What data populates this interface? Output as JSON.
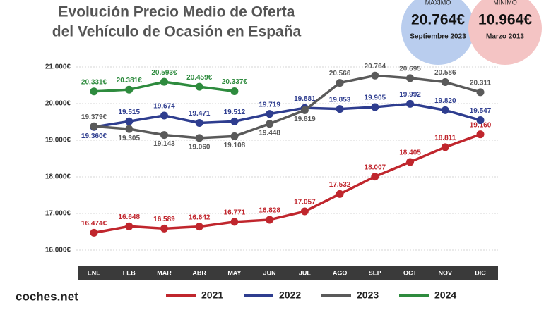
{
  "chart_data": {
    "type": "line",
    "title_lines": [
      "Evolución Precio Medio de Oferta",
      "del Vehículo de Ocasión en España"
    ],
    "badges": [
      {
        "heading": "MÁXIMO",
        "value": "20.764€",
        "sub": "Septiembre 2023",
        "color": "#b9cdee"
      },
      {
        "heading": "MÍNIMO",
        "value": "10.964€",
        "sub": "Marzo 2013",
        "color": "#f4c4c4"
      }
    ],
    "brand": "coches.net",
    "categories": [
      "ENE",
      "FEB",
      "MAR",
      "ABR",
      "MAY",
      "JUN",
      "JUL",
      "AGO",
      "SEP",
      "OCT",
      "NOV",
      "DIC"
    ],
    "series": [
      {
        "name": "2021",
        "color": "#c0262d",
        "values": [
          16474,
          16648,
          16589,
          16642,
          16771,
          16828,
          17057,
          17532,
          18007,
          18405,
          18811,
          19160
        ],
        "value_labels": [
          "16.474€",
          "16.648",
          "16.589",
          "16.642",
          "16.771",
          "16.828",
          "17.057",
          "17.532",
          "18.007",
          "18.405",
          "18.811",
          "19.160"
        ]
      },
      {
        "name": "2022",
        "color": "#2e3d8f",
        "values": [
          19360,
          19515,
          19674,
          19471,
          19512,
          19719,
          19881,
          19853,
          19905,
          19992,
          19820,
          19547
        ],
        "value_labels": [
          "19.360€",
          "19.515",
          "19.674",
          "19.471",
          "19.512",
          "19.719",
          "19.881",
          "19.853",
          "19.905",
          "19.992",
          "19.820",
          "19.547"
        ]
      },
      {
        "name": "2023",
        "color": "#5a5a5a",
        "values": [
          19379,
          19305,
          19143,
          19060,
          19108,
          19448,
          19819,
          20566,
          20764,
          20695,
          20586,
          20311
        ],
        "value_labels": [
          "19.379€",
          "19.305",
          "19.143",
          "19.060",
          "19.108",
          "19.448",
          "19.819",
          "20.566",
          "20.764",
          "20.695",
          "20.586",
          "20.311"
        ]
      },
      {
        "name": "2024",
        "color": "#2e8b3e",
        "values": [
          20331,
          20381,
          20593,
          20459,
          20337,
          null,
          null,
          null,
          null,
          null,
          null,
          null
        ],
        "value_labels": [
          "20.331€",
          "20.381€",
          "20.593€",
          "20.459€",
          "20.337€",
          null,
          null,
          null,
          null,
          null,
          null,
          null
        ]
      }
    ],
    "ylim": [
      15700,
      21300
    ],
    "yticks": [
      {
        "value": 16000,
        "label": "16.000€"
      },
      {
        "value": 17000,
        "label": "17.000€"
      },
      {
        "value": 18000,
        "label": "18.000€"
      },
      {
        "value": 19000,
        "label": "19.000€"
      },
      {
        "value": 20000,
        "label": "20.000€"
      },
      {
        "value": 21000,
        "label": "21.000€"
      }
    ],
    "grid": true
  }
}
